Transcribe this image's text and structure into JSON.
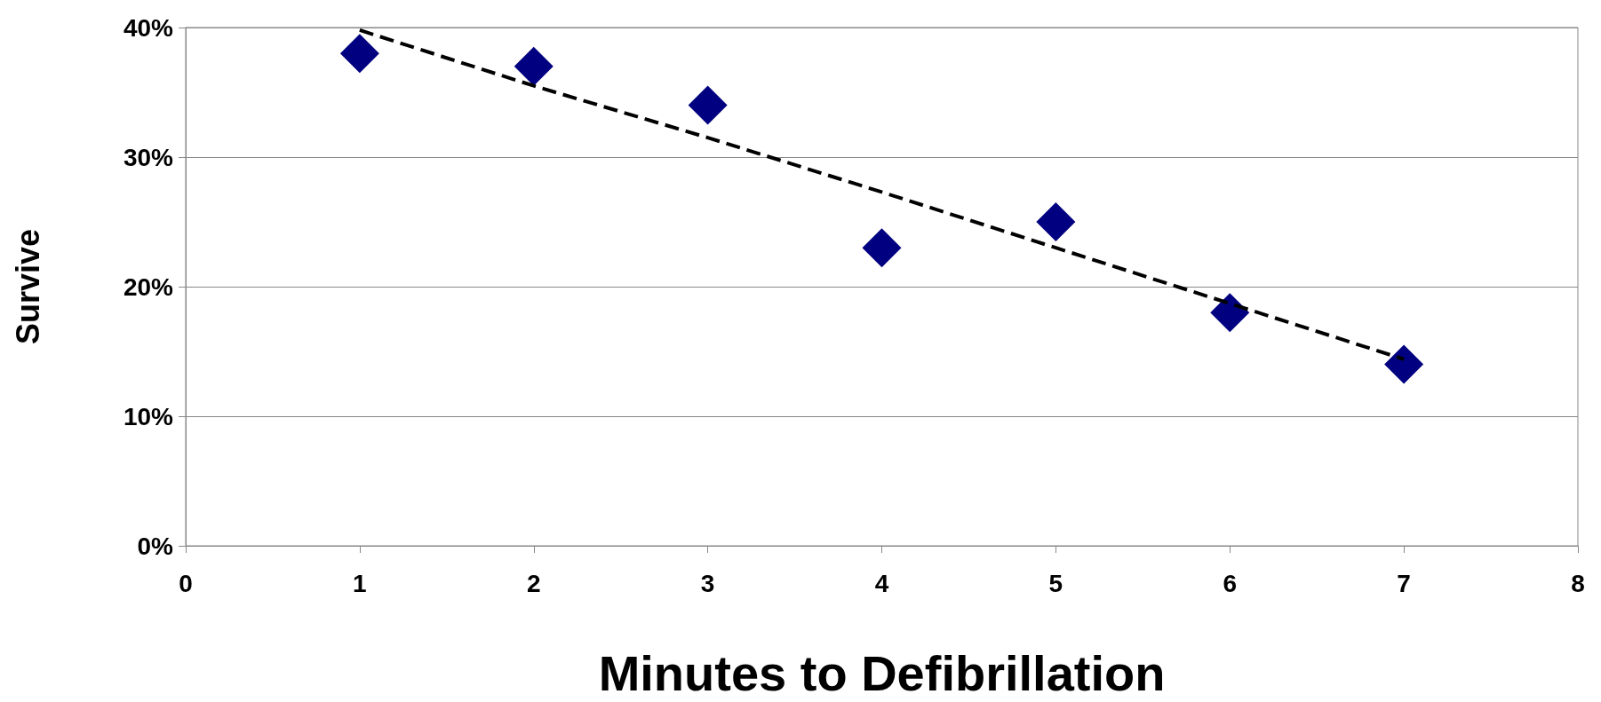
{
  "chart_data": {
    "type": "scatter",
    "xlabel": "Minutes to Defibrillation",
    "ylabel": "Survive",
    "x": [
      1,
      2,
      3,
      4,
      5,
      6,
      7
    ],
    "series": [
      {
        "color": "#000080",
        "marker": "diamond",
        "values": [
          38,
          37,
          34,
          23,
          25,
          18,
          14
        ]
      },
      {
        "type": "line",
        "color": "#000000",
        "marker": "none",
        "line_style": "dashed",
        "x": [
          1,
          2,
          3,
          4,
          5,
          6,
          7
        ],
        "values": [
          39.8,
          35.5,
          31.5,
          27.3,
          23.0,
          18.7,
          14.4
        ]
      }
    ],
    "xlim": [
      0,
      8
    ],
    "xticks": [
      0,
      1,
      2,
      3,
      4,
      5,
      6,
      7,
      8
    ],
    "ylim": [
      0,
      40
    ],
    "yticks": [
      {
        "value": 0,
        "label": "0%"
      },
      {
        "value": 10,
        "label": "10%"
      },
      {
        "value": 20,
        "label": "20%"
      },
      {
        "value": 30,
        "label": "30%"
      },
      {
        "value": 40,
        "label": "40%"
      }
    ],
    "grid": "y"
  }
}
